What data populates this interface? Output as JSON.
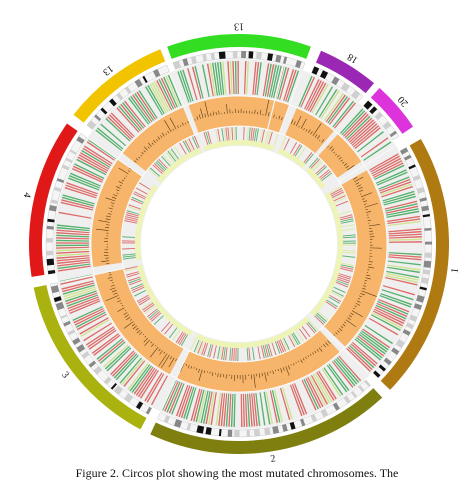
{
  "figure": {
    "caption": "Figure 2. Circos plot showing the most mutated chromosomes. The"
  },
  "chart_data": {
    "type": "circos",
    "chromosomes": [
      {
        "label": "1",
        "start_deg": 60,
        "end_deg": 134,
        "color": "#b07a12"
      },
      {
        "label": "2",
        "start_deg": 137,
        "end_deg": 205,
        "color": "#7f7f10"
      },
      {
        "label": "3",
        "start_deg": 208,
        "end_deg": 258,
        "color": "#a9b20f"
      },
      {
        "label": "4",
        "start_deg": 261,
        "end_deg": 305,
        "color": "#e01818"
      },
      {
        "label": "13",
        "start_deg": 308,
        "end_deg": 338,
        "color": "#f2c400"
      },
      {
        "label": "13",
        "start_deg": 340,
        "end_deg": 20,
        "color": "#33dd22"
      },
      {
        "label": "18",
        "start_deg": 23,
        "end_deg": 40,
        "color": "#9b27b5"
      },
      {
        "label": "20",
        "start_deg": 42,
        "end_deg": 56,
        "color": "#dd33dd"
      },
      {
        "label": "1",
        "start_deg": 58,
        "end_deg": 59,
        "color": "#cccccc"
      }
    ],
    "track_colors": {
      "mutation_red": "#d9534f",
      "mutation_green": "#3aa655",
      "band_orange": "#f6b56b",
      "band_light": "#eef3b6",
      "line_dark": "#5a3a10"
    }
  }
}
